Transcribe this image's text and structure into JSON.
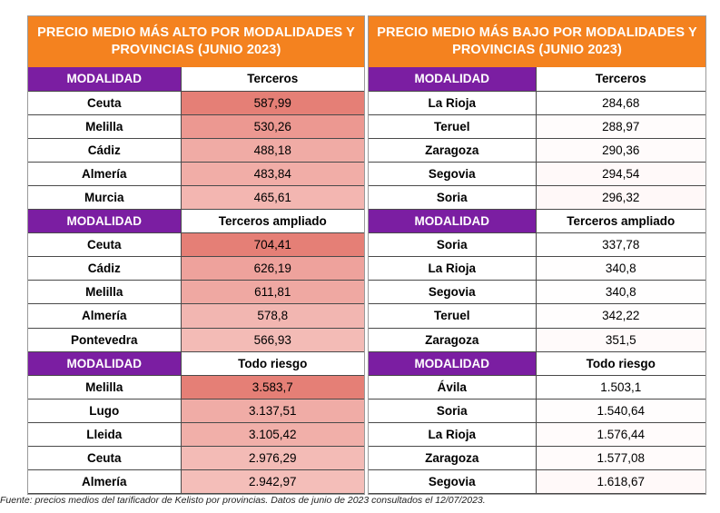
{
  "left_panel": {
    "title": "PRECIO MEDIO MÁS ALTO POR MODALIDADES Y PROVINCIAS (JUNIO 2023)",
    "sections": [
      {
        "header_label": "MODALIDAD",
        "category": "Terceros",
        "rows": [
          {
            "province": "Ceuta",
            "price": "587,99",
            "color": "#e57f76"
          },
          {
            "province": "Melilla",
            "price": "530,26",
            "color": "#ec9891"
          },
          {
            "province": "Cádiz",
            "price": "488,18",
            "color": "#f0aba5"
          },
          {
            "province": "Almería",
            "price": "483,84",
            "color": "#f1ada7"
          },
          {
            "province": "Murcia",
            "price": "465,61",
            "color": "#f3b6b1"
          }
        ]
      },
      {
        "header_label": "MODALIDAD",
        "category": "Terceros ampliado",
        "rows": [
          {
            "province": "Ceuta",
            "price": "704,41",
            "color": "#e57f76"
          },
          {
            "province": "Cádiz",
            "price": "626,19",
            "color": "#eea29c"
          },
          {
            "province": "Melilla",
            "price": "611,81",
            "color": "#efa8a2"
          },
          {
            "province": "Almería",
            "price": "578,8",
            "color": "#f2b6b1"
          },
          {
            "province": "Pontevedra",
            "price": "566,93",
            "color": "#f3bbb6"
          }
        ]
      },
      {
        "header_label": "MODALIDAD",
        "category": "Todo riesgo",
        "rows": [
          {
            "province": "Melilla",
            "price": "3.583,7",
            "color": "#e57f76"
          },
          {
            "province": "Lugo",
            "price": "3.137,51",
            "color": "#f0aca6"
          },
          {
            "province": "Lleida",
            "price": "3.105,42",
            "color": "#f1afa9"
          },
          {
            "province": "Ceuta",
            "price": "2.976,29",
            "color": "#f3bbb6"
          },
          {
            "province": "Almería",
            "price": "2.942,97",
            "color": "#f4beb9"
          }
        ]
      }
    ]
  },
  "right_panel": {
    "title": "PRECIO MEDIO MÁS BAJO POR MODALIDADES Y PROVINCIAS (JUNIO 2023)",
    "sections": [
      {
        "header_label": "MODALIDAD",
        "category": "Terceros",
        "rows": [
          {
            "province": "La Rioja",
            "price": "284,68",
            "color": "#ffffff"
          },
          {
            "province": "Teruel",
            "price": "288,97",
            "color": "#fffcfc"
          },
          {
            "province": "Zaragoza",
            "price": "290,36",
            "color": "#fffbfb"
          },
          {
            "province": "Segovia",
            "price": "294,54",
            "color": "#fff9f9"
          },
          {
            "province": "Soria",
            "price": "296,32",
            "color": "#fff8f8"
          }
        ]
      },
      {
        "header_label": "MODALIDAD",
        "category": "Terceros ampliado",
        "rows": [
          {
            "province": "Soria",
            "price": "337,78",
            "color": "#ffffff"
          },
          {
            "province": "La Rioja",
            "price": "340,8",
            "color": "#fffefe"
          },
          {
            "province": "Segovia",
            "price": "340,8",
            "color": "#fffefe"
          },
          {
            "province": "Teruel",
            "price": "342,22",
            "color": "#fffdfd"
          },
          {
            "province": "Zaragoza",
            "price": "351,5",
            "color": "#fffafa"
          }
        ]
      },
      {
        "header_label": "MODALIDAD",
        "category": "Todo riesgo",
        "rows": [
          {
            "province": "Ávila",
            "price": "1.503,1",
            "color": "#ffffff"
          },
          {
            "province": "Soria",
            "price": "1.540,64",
            "color": "#fffdfd"
          },
          {
            "province": "La Rioja",
            "price": "1.576,44",
            "color": "#fffbfb"
          },
          {
            "province": "Zaragoza",
            "price": "1.577,08",
            "color": "#fffbfb"
          },
          {
            "province": "Segovia",
            "price": "1.618,67",
            "color": "#fff9f9"
          }
        ]
      }
    ]
  },
  "source_note": "Fuente: precios medios del tarificador de Kelisto por provincias. Datos de junio de 2023 consultados el 12/07/2023."
}
